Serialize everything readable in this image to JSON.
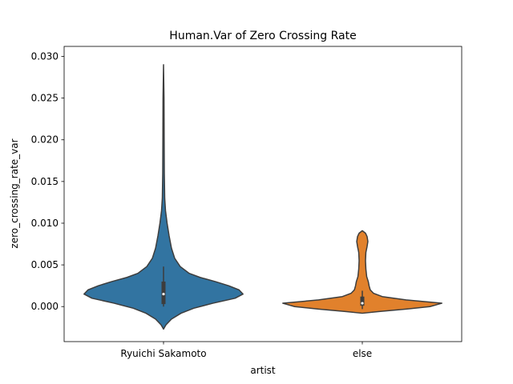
{
  "chart_data": {
    "type": "violin",
    "title": "Human.Var of Zero Crossing Rate",
    "xlabel": "artist",
    "ylabel": "zero_crossing_rate_var",
    "categories": [
      "Ryuichi Sakamoto",
      "else"
    ],
    "ylim": [
      -0.0042,
      0.0312
    ],
    "yticks": [
      0.0,
      0.005,
      0.01,
      0.015,
      0.02,
      0.025,
      0.03
    ],
    "ytick_labels": [
      "0.000",
      "0.005",
      "0.010",
      "0.015",
      "0.020",
      "0.025",
      "0.030"
    ],
    "grid": false,
    "colors": [
      "#3274a1",
      "#e1812c"
    ],
    "outline_color": "#3d3d3d",
    "violins": [
      {
        "category": "Ryuichi Sakamoto",
        "min": -0.0027,
        "max": 0.029,
        "q1": 0.0003,
        "median": 0.0015,
        "q3": 0.003,
        "whisker_low": 0.0,
        "whisker_high": 0.0048,
        "density": [
          [
            -0.0027,
            0.0
          ],
          [
            -0.0022,
            0.03
          ],
          [
            -0.0015,
            0.1
          ],
          [
            -0.0008,
            0.22
          ],
          [
            -0.0002,
            0.38
          ],
          [
            0.0004,
            0.62
          ],
          [
            0.001,
            0.9
          ],
          [
            0.0015,
            1.0
          ],
          [
            0.002,
            0.95
          ],
          [
            0.0025,
            0.82
          ],
          [
            0.003,
            0.65
          ],
          [
            0.0035,
            0.46
          ],
          [
            0.004,
            0.32
          ],
          [
            0.0048,
            0.21
          ],
          [
            0.0058,
            0.14
          ],
          [
            0.007,
            0.1
          ],
          [
            0.0085,
            0.07
          ],
          [
            0.01,
            0.045
          ],
          [
            0.0115,
            0.025
          ],
          [
            0.013,
            0.015
          ],
          [
            0.016,
            0.01
          ],
          [
            0.02,
            0.008
          ],
          [
            0.025,
            0.006
          ],
          [
            0.029,
            0.0
          ]
        ]
      },
      {
        "category": "else",
        "min": -0.0008,
        "max": 0.0091,
        "q1": 0.0001,
        "median": 0.0004,
        "q3": 0.0012,
        "whisker_low": -0.0003,
        "whisker_high": 0.0019,
        "density": [
          [
            -0.0008,
            0.0
          ],
          [
            -0.0006,
            0.2
          ],
          [
            -0.0003,
            0.55
          ],
          [
            0.0,
            0.85
          ],
          [
            0.0004,
            1.0
          ],
          [
            0.0008,
            0.55
          ],
          [
            0.0012,
            0.25
          ],
          [
            0.0016,
            0.14
          ],
          [
            0.002,
            0.1
          ],
          [
            0.0025,
            0.085
          ],
          [
            0.003,
            0.075
          ],
          [
            0.0036,
            0.055
          ],
          [
            0.0045,
            0.045
          ],
          [
            0.0055,
            0.04
          ],
          [
            0.0065,
            0.045
          ],
          [
            0.0072,
            0.06
          ],
          [
            0.0078,
            0.07
          ],
          [
            0.0084,
            0.06
          ],
          [
            0.0088,
            0.04
          ],
          [
            0.0091,
            0.0
          ]
        ]
      }
    ]
  }
}
